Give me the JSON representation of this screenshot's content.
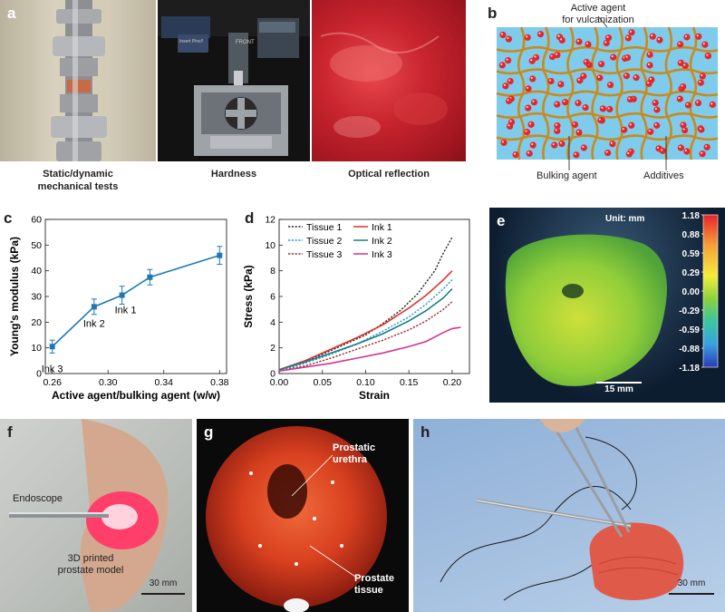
{
  "panels": {
    "a": {
      "letter": "a",
      "captions": [
        "Static/dynamic\nmechanical tests",
        "Hardness",
        "Optical reflection"
      ],
      "machine_text": {
        "front": "FRONT",
        "insert": "Insert Pins!!"
      }
    },
    "b": {
      "letter": "b",
      "active_agent": "Active agent\nfor vulcanization",
      "bulking_agent": "Bulking agent",
      "additives": "Additives"
    },
    "e": {
      "letter": "e",
      "unit": "Unit: mm",
      "colorbar_ticks": [
        "1.18",
        "0.88",
        "0.59",
        "0.29",
        "0.00",
        "-0.29",
        "-0.59",
        "-0.88",
        "-1.18"
      ],
      "scale": "15 mm"
    },
    "f": {
      "letter": "f",
      "endoscope": "Endoscope",
      "model": "3D printed\nprostate model",
      "scale": "30 mm"
    },
    "g": {
      "letter": "g",
      "urethra": "Prostatic\nurethra",
      "tissue": "Prostate\ntissue"
    },
    "h": {
      "letter": "h",
      "scale": "30 mm"
    }
  },
  "chart_data": [
    {
      "panel": "c",
      "type": "line",
      "xlabel": "Active agent/bulking agent (w/w)",
      "ylabel": "Young's modulus (kPa)",
      "xlim": [
        0.255,
        0.385
      ],
      "ylim": [
        0,
        60
      ],
      "xticks": [
        0.26,
        0.3,
        0.34,
        0.38
      ],
      "xtick_labels": [
        "0.26",
        "0.30",
        "0.34",
        "0.38"
      ],
      "yticks": [
        0,
        10,
        20,
        30,
        40,
        50,
        60
      ],
      "grid": false,
      "series": [
        {
          "x": [
            0.26,
            0.29,
            0.31,
            0.33,
            0.38
          ],
          "y": [
            10.5,
            26,
            30.5,
            37.5,
            46
          ],
          "err": [
            2.5,
            3,
            3.5,
            3,
            3.5
          ],
          "color": "#1f78b4"
        }
      ],
      "annotations": [
        {
          "text": "Ink 3",
          "x": 0.26,
          "y": 10.5
        },
        {
          "text": "Ink 2",
          "x": 0.29,
          "y": 26
        },
        {
          "text": "Ink 1",
          "x": 0.31,
          "y": 30.5
        }
      ]
    },
    {
      "panel": "d",
      "type": "line",
      "xlabel": "Strain",
      "ylabel": "Stress (kPa)",
      "xlim": [
        0,
        0.22
      ],
      "ylim": [
        0,
        12
      ],
      "xticks": [
        0,
        0.05,
        0.1,
        0.15,
        0.2
      ],
      "xtick_labels": [
        "0.00",
        "0.05",
        "0.10",
        "0.15",
        "0.20"
      ],
      "yticks": [
        0,
        2,
        4,
        6,
        8,
        10,
        12
      ],
      "grid": false,
      "legend": "top",
      "series": [
        {
          "name": "Tissue 1",
          "color": "#2b2b2b",
          "dash": true,
          "x": [
            0,
            0.02,
            0.05,
            0.08,
            0.1,
            0.12,
            0.14,
            0.16,
            0.18,
            0.19,
            0.2
          ],
          "y": [
            0.3,
            0.7,
            1.5,
            2.4,
            3.0,
            3.9,
            4.9,
            6.2,
            8.0,
            9.4,
            10.6
          ]
        },
        {
          "name": "Tissue 2",
          "color": "#2a9bc9",
          "dash": true,
          "x": [
            0,
            0.03,
            0.06,
            0.09,
            0.12,
            0.15,
            0.17,
            0.19,
            0.2
          ],
          "y": [
            0.2,
            0.8,
            1.5,
            2.3,
            3.3,
            4.4,
            5.4,
            6.6,
            7.3
          ]
        },
        {
          "name": "Tissue 3",
          "color": "#9b2b2b",
          "dash": true,
          "x": [
            0,
            0.03,
            0.06,
            0.09,
            0.12,
            0.15,
            0.17,
            0.19,
            0.2
          ],
          "y": [
            0.2,
            0.6,
            1.2,
            1.9,
            2.6,
            3.4,
            4.1,
            5.0,
            5.6
          ]
        },
        {
          "name": "Ink 1",
          "color": "#e0302b",
          "dash": false,
          "x": [
            0,
            0.03,
            0.06,
            0.09,
            0.12,
            0.15,
            0.17,
            0.19,
            0.2
          ],
          "y": [
            0.3,
            1.0,
            1.9,
            2.8,
            3.8,
            5.1,
            6.1,
            7.3,
            8.0
          ]
        },
        {
          "name": "Ink 2",
          "color": "#1a7a82",
          "dash": false,
          "x": [
            0,
            0.03,
            0.06,
            0.09,
            0.12,
            0.15,
            0.17,
            0.19,
            0.2
          ],
          "y": [
            0.3,
            0.9,
            1.6,
            2.3,
            3.1,
            4.1,
            4.9,
            5.9,
            6.6
          ]
        },
        {
          "name": "Ink 3",
          "color": "#d6338f",
          "dash": false,
          "x": [
            0,
            0.03,
            0.06,
            0.09,
            0.12,
            0.15,
            0.17,
            0.19,
            0.2,
            0.21
          ],
          "y": [
            0.2,
            0.5,
            0.8,
            1.2,
            1.6,
            2.1,
            2.5,
            3.2,
            3.5,
            3.6
          ]
        }
      ]
    }
  ]
}
